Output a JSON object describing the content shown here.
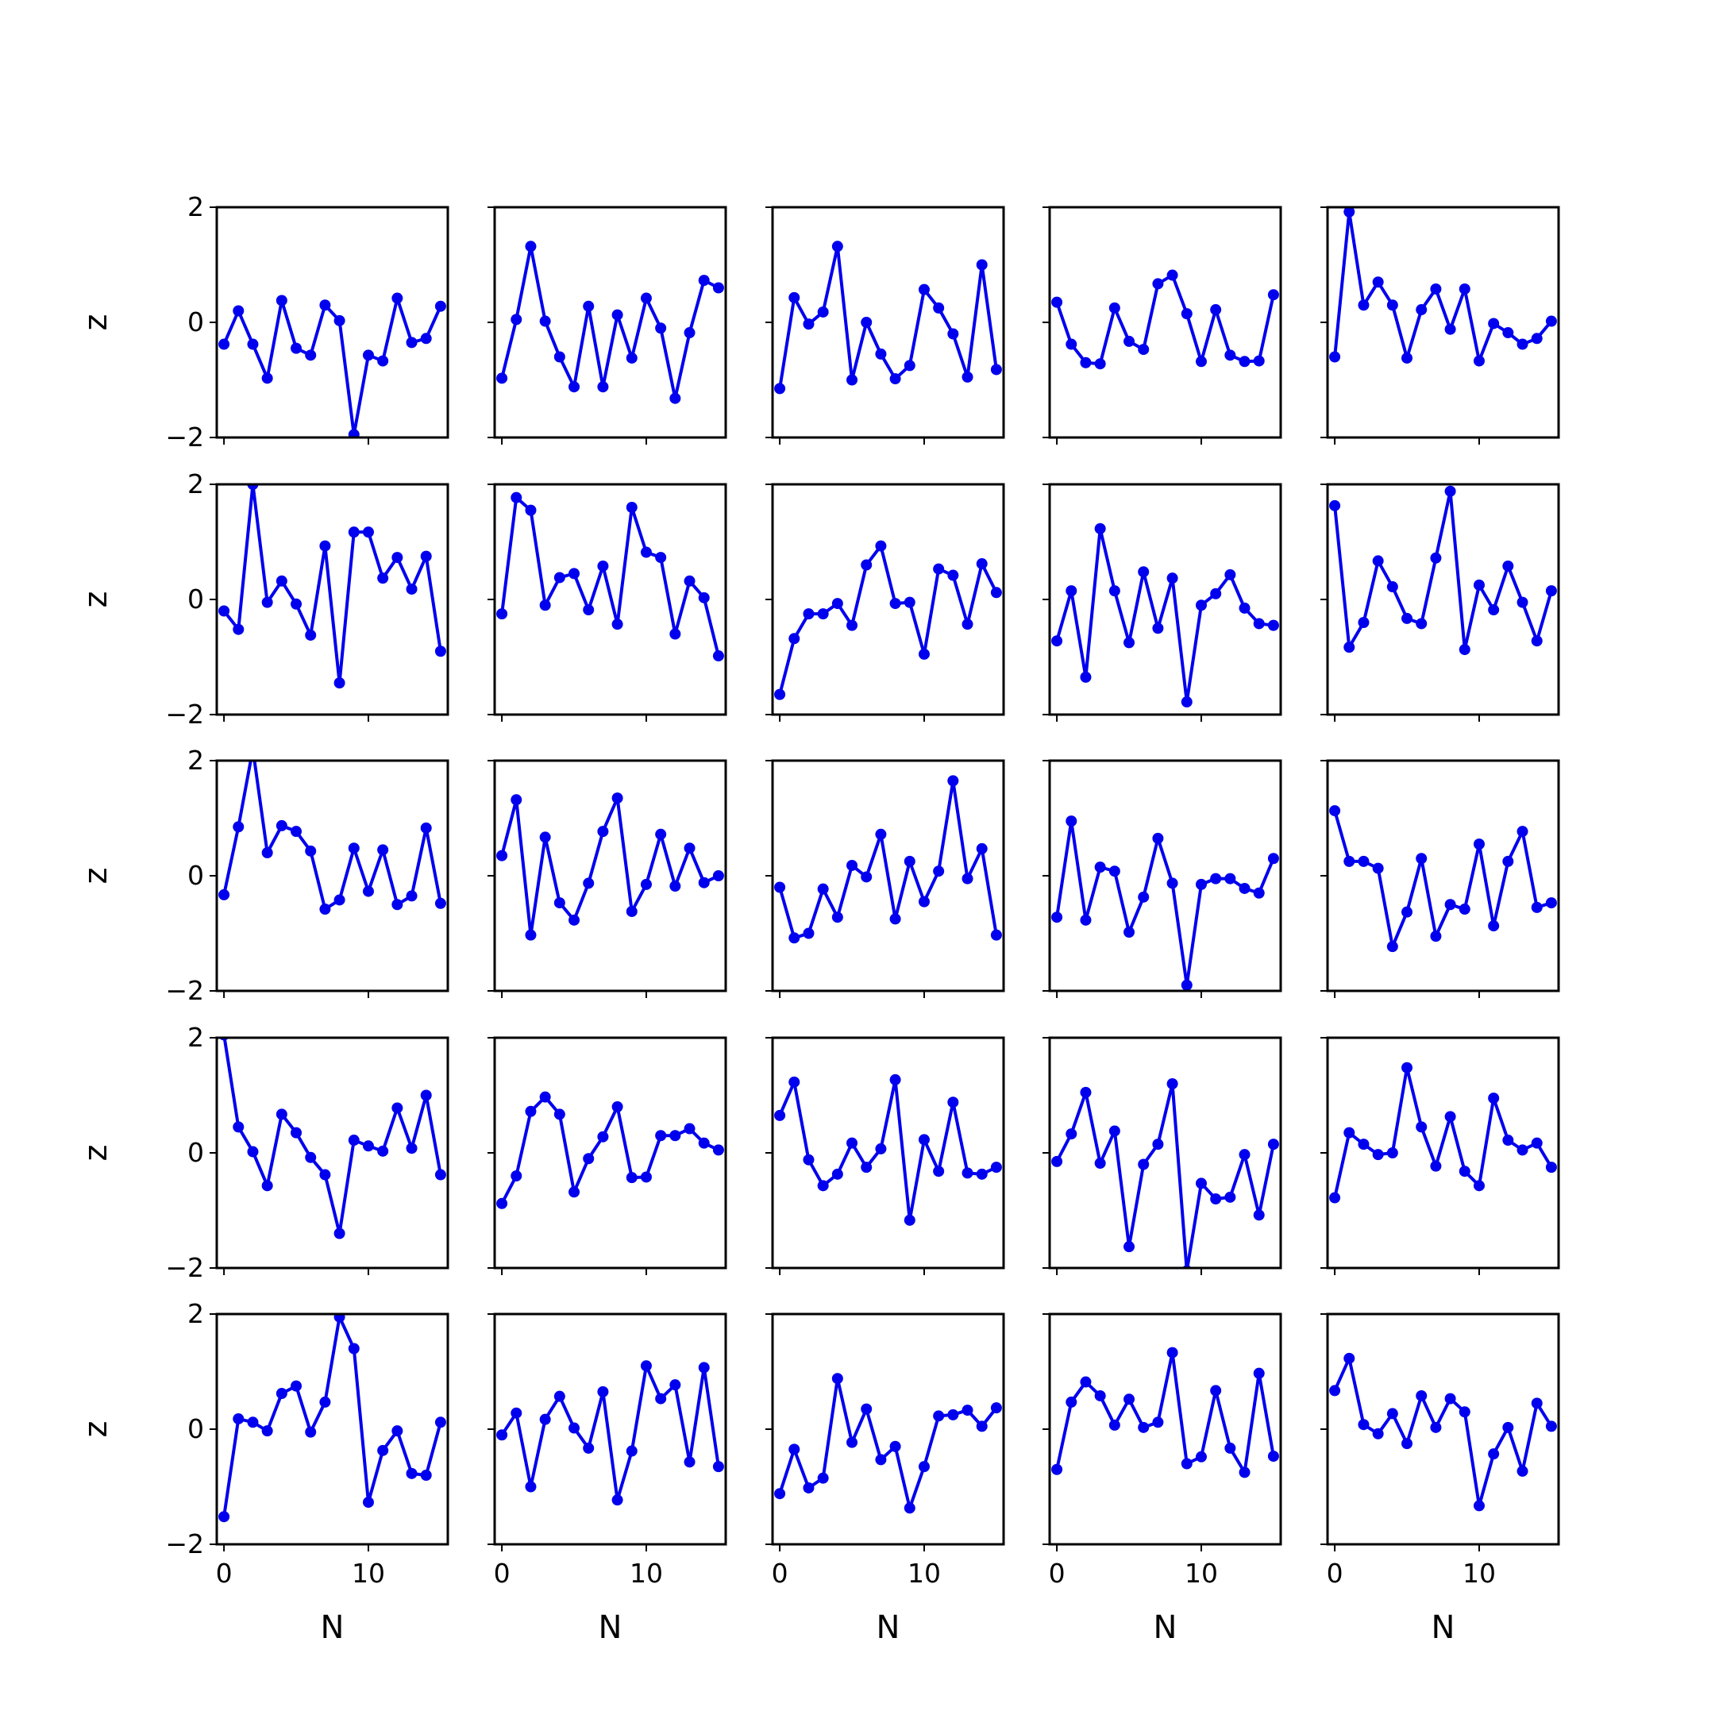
{
  "chart_data": {
    "type": "line",
    "layout": "5x5 grid of small multiples, shared axes",
    "xlabel": "N",
    "ylabel": "z",
    "xlim": [
      -0.5,
      15.5
    ],
    "ylim": [
      -2,
      2
    ],
    "xticks": [
      0,
      10
    ],
    "xtick_labels": [
      "0",
      "10"
    ],
    "yticks": [
      -2,
      0,
      2
    ],
    "ytick_labels": [
      "−2",
      "0",
      "2"
    ],
    "grid": false,
    "legend": "none",
    "line_color": "#0000ee",
    "marker": "circle",
    "x": [
      0,
      1,
      2,
      3,
      4,
      5,
      6,
      7,
      8,
      9,
      10,
      11,
      12,
      13,
      14,
      15
    ],
    "panels": [
      {
        "row": 1,
        "col": 1,
        "y": [
          -0.38,
          0.2,
          -0.38,
          -0.97,
          0.38,
          -0.45,
          -0.57,
          0.3,
          0.03,
          -1.95,
          -0.57,
          -0.67,
          0.42,
          -0.35,
          -0.28,
          0.28
        ]
      },
      {
        "row": 1,
        "col": 2,
        "y": [
          -0.97,
          0.05,
          1.32,
          0.02,
          -0.6,
          -1.12,
          0.28,
          -1.12,
          0.13,
          -0.62,
          0.42,
          -0.1,
          -1.32,
          -0.18,
          0.73,
          0.6
        ]
      },
      {
        "row": 1,
        "col": 3,
        "y": [
          -1.15,
          0.43,
          -0.03,
          0.18,
          1.32,
          -1.0,
          0.0,
          -0.55,
          -0.98,
          -0.75,
          0.57,
          0.25,
          -0.2,
          -0.95,
          1.0,
          -0.82
        ]
      },
      {
        "row": 1,
        "col": 4,
        "y": [
          0.35,
          -0.38,
          -0.7,
          -0.72,
          0.25,
          -0.33,
          -0.47,
          0.67,
          0.82,
          0.15,
          -0.68,
          0.22,
          -0.57,
          -0.68,
          -0.67,
          0.48
        ]
      },
      {
        "row": 1,
        "col": 5,
        "y": [
          -0.6,
          1.92,
          0.3,
          0.7,
          0.3,
          -0.62,
          0.22,
          0.58,
          -0.12,
          0.58,
          -0.67,
          -0.02,
          -0.18,
          -0.38,
          -0.28,
          0.02
        ]
      },
      {
        "row": 2,
        "col": 1,
        "y": [
          -0.2,
          -0.52,
          2.0,
          -0.05,
          0.32,
          -0.08,
          -0.62,
          0.93,
          -1.45,
          1.17,
          1.17,
          0.37,
          0.73,
          0.18,
          0.75,
          -0.9
        ]
      },
      {
        "row": 2,
        "col": 2,
        "y": [
          -0.25,
          1.77,
          1.55,
          -0.1,
          0.38,
          0.45,
          -0.18,
          0.58,
          -0.43,
          1.6,
          0.82,
          0.73,
          -0.6,
          0.32,
          0.03,
          -0.98
        ]
      },
      {
        "row": 2,
        "col": 3,
        "y": [
          -1.65,
          -0.68,
          -0.25,
          -0.25,
          -0.07,
          -0.45,
          0.6,
          0.93,
          -0.07,
          -0.05,
          -0.95,
          0.53,
          0.42,
          -0.43,
          0.62,
          0.12
        ]
      },
      {
        "row": 2,
        "col": 4,
        "y": [
          -0.72,
          0.15,
          -1.35,
          1.23,
          0.15,
          -0.75,
          0.48,
          -0.5,
          0.37,
          -1.78,
          -0.1,
          0.1,
          0.43,
          -0.15,
          -0.42,
          -0.45
        ]
      },
      {
        "row": 2,
        "col": 5,
        "y": [
          1.63,
          -0.83,
          -0.4,
          0.67,
          0.22,
          -0.33,
          -0.42,
          0.72,
          1.88,
          -0.87,
          0.25,
          -0.18,
          0.58,
          -0.05,
          -0.72,
          0.15
        ]
      },
      {
        "row": 3,
        "col": 1,
        "y": [
          -0.33,
          0.85,
          2.2,
          0.4,
          0.87,
          0.77,
          0.43,
          -0.58,
          -0.42,
          0.48,
          -0.27,
          0.45,
          -0.5,
          -0.35,
          0.83,
          -0.48
        ]
      },
      {
        "row": 3,
        "col": 2,
        "y": [
          0.35,
          1.32,
          -1.03,
          0.67,
          -0.47,
          -0.77,
          -0.13,
          0.77,
          1.35,
          -0.62,
          -0.15,
          0.72,
          -0.18,
          0.48,
          -0.12,
          0.0
        ]
      },
      {
        "row": 3,
        "col": 3,
        "y": [
          -0.2,
          -1.08,
          -1.0,
          -0.23,
          -0.72,
          0.18,
          -0.02,
          0.72,
          -0.75,
          0.25,
          -0.45,
          0.08,
          1.65,
          -0.05,
          0.47,
          -1.03
        ]
      },
      {
        "row": 3,
        "col": 4,
        "y": [
          -0.72,
          0.95,
          -0.77,
          0.15,
          0.08,
          -0.98,
          -0.37,
          0.65,
          -0.13,
          -1.9,
          -0.15,
          -0.05,
          -0.05,
          -0.22,
          -0.3,
          0.3
        ]
      },
      {
        "row": 3,
        "col": 5,
        "y": [
          1.13,
          0.25,
          0.25,
          0.13,
          -1.23,
          -0.63,
          0.3,
          -1.05,
          -0.5,
          -0.58,
          0.55,
          -0.87,
          0.25,
          0.77,
          -0.55,
          -0.47
        ]
      },
      {
        "row": 4,
        "col": 1,
        "y": [
          2.05,
          0.45,
          0.02,
          -0.57,
          0.67,
          0.35,
          -0.08,
          -0.38,
          -1.4,
          0.22,
          0.12,
          0.03,
          0.78,
          0.08,
          1.0,
          -0.38
        ]
      },
      {
        "row": 4,
        "col": 2,
        "y": [
          -0.88,
          -0.4,
          0.72,
          0.97,
          0.67,
          -0.68,
          -0.1,
          0.28,
          0.8,
          -0.43,
          -0.42,
          0.3,
          0.3,
          0.42,
          0.17,
          0.05
        ]
      },
      {
        "row": 4,
        "col": 3,
        "y": [
          0.65,
          1.23,
          -0.12,
          -0.57,
          -0.37,
          0.17,
          -0.25,
          0.07,
          1.27,
          -1.17,
          0.23,
          -0.32,
          0.88,
          -0.35,
          -0.37,
          -0.25
        ]
      },
      {
        "row": 4,
        "col": 4,
        "y": [
          -0.15,
          0.33,
          1.05,
          -0.18,
          0.38,
          -1.63,
          -0.2,
          0.15,
          1.2,
          -2.05,
          -0.53,
          -0.8,
          -0.77,
          -0.03,
          -1.08,
          0.15
        ]
      },
      {
        "row": 4,
        "col": 5,
        "y": [
          -0.78,
          0.35,
          0.15,
          -0.03,
          0.0,
          1.48,
          0.45,
          -0.23,
          0.63,
          -0.32,
          -0.57,
          0.95,
          0.22,
          0.05,
          0.17,
          -0.25
        ]
      },
      {
        "row": 5,
        "col": 1,
        "y": [
          -1.52,
          0.18,
          0.12,
          -0.03,
          0.62,
          0.75,
          -0.05,
          0.47,
          1.95,
          1.4,
          -1.27,
          -0.37,
          -0.03,
          -0.77,
          -0.8,
          0.12
        ]
      },
      {
        "row": 5,
        "col": 2,
        "y": [
          -0.1,
          0.28,
          -1.0,
          0.17,
          0.57,
          0.02,
          -0.33,
          0.65,
          -1.23,
          -0.38,
          1.1,
          0.53,
          0.77,
          -0.57,
          1.07,
          -0.65
        ]
      },
      {
        "row": 5,
        "col": 3,
        "y": [
          -1.12,
          -0.35,
          -1.02,
          -0.85,
          0.88,
          -0.23,
          0.35,
          -0.53,
          -0.3,
          -1.37,
          -0.65,
          0.23,
          0.25,
          0.33,
          0.05,
          0.37
        ]
      },
      {
        "row": 5,
        "col": 4,
        "y": [
          -0.7,
          0.47,
          0.82,
          0.58,
          0.07,
          0.52,
          0.03,
          0.12,
          1.33,
          -0.6,
          -0.48,
          0.67,
          -0.33,
          -0.75,
          0.97,
          -0.47
        ]
      },
      {
        "row": 5,
        "col": 5,
        "y": [
          0.67,
          1.23,
          0.08,
          -0.08,
          0.27,
          -0.25,
          0.58,
          0.03,
          0.53,
          0.3,
          -1.33,
          -0.43,
          0.03,
          -0.73,
          0.45,
          0.05
        ]
      }
    ]
  }
}
